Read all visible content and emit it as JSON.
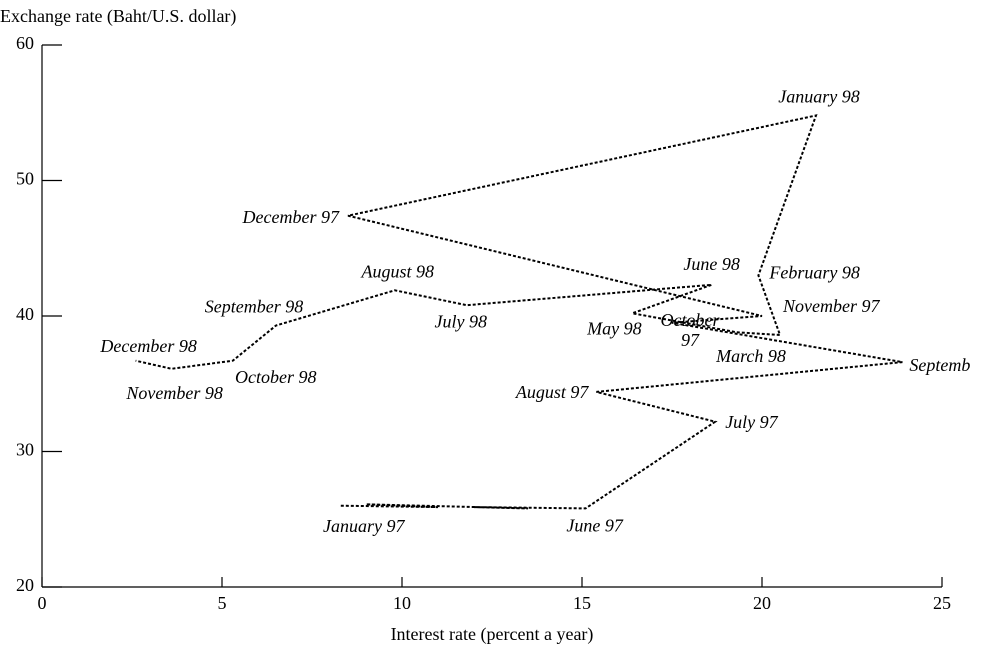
{
  "chart_data": {
    "type": "line",
    "x_label": "Interest rate (percent a year)",
    "y_label": "Exchange rate (Baht/U.S. dollar)",
    "xlim": [
      0,
      25
    ],
    "xticks": [
      0,
      5,
      10,
      15,
      20,
      25
    ],
    "ylim": [
      20,
      60
    ],
    "yticks": [
      20,
      30,
      40,
      50,
      60
    ],
    "color": "#000000",
    "x": [
      8.3,
      11,
      9,
      13.5,
      12,
      15.1,
      18.7,
      15.4,
      23.9,
      17.5,
      20.0,
      8.5,
      21.5,
      19.9,
      20.5,
      19.3,
      16.4,
      18.6,
      11.8,
      9.8,
      6.5,
      5.3,
      3.6,
      2.6
    ],
    "y": [
      26.0,
      25.9,
      26.1,
      25.8,
      25.9,
      25.8,
      32.2,
      34.4,
      36.6,
      39.5,
      40.0,
      47.4,
      54.8,
      43.0,
      38.6,
      38.8,
      40.2,
      42.3,
      40.8,
      41.9,
      39.3,
      36.7,
      36.1,
      36.7
    ],
    "labels": [
      "January 97",
      null,
      null,
      null,
      null,
      "June 97",
      "July 97",
      "August 97",
      "Septemb",
      "October 97",
      "November 97",
      "December 97",
      "January 98",
      "February 98",
      "March 98",
      null,
      "May 98",
      "June 98",
      "July 98",
      "August 98",
      "September 98",
      "October 98",
      "November 98",
      "December 98"
    ]
  }
}
